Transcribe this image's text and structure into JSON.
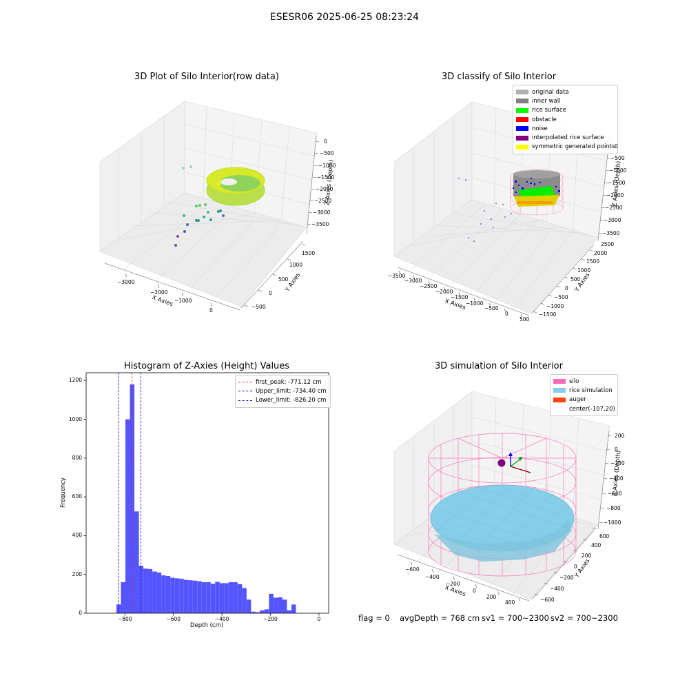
{
  "figure_title": "ESESR06 2025-06-25 08:23:24",
  "footer": {
    "flag": "flag = 0",
    "avg_depth": "avgDepth = 768 cm",
    "sv1": "sv1 = 700~2300",
    "sv2": "sv2 = 700~2300"
  },
  "colors": {
    "histogram": "#5555ff",
    "first_peak": "#d62728",
    "limits": "#0000cc",
    "silo": "#ff69b4",
    "rice_simulation": "#87ceeb",
    "auger": "#ff4500"
  },
  "chart_data": [
    {
      "type": "scatter",
      "title": "3D Plot of Silo Interior(row data)",
      "xlabel": "X Axies",
      "ylabel": "Y Axies",
      "zlabel": "Z Axies (Depth)",
      "x_ticks": [
        "−3000",
        "−2000",
        "−1000",
        "0"
      ],
      "y_ticks": [
        "−500",
        "0",
        "500",
        "1000",
        "1500"
      ],
      "z_ticks": [
        "0",
        "−500",
        "−1000",
        "−1500",
        "−2000",
        "−2500",
        "−3000",
        "−3500"
      ]
    },
    {
      "type": "scatter",
      "title": "3D classify of Silo Interior",
      "xlabel": "X Axies",
      "ylabel": "Y Axies",
      "zlabel": "Z Axies (Depth)",
      "x_ticks": [
        "−3500",
        "−3000",
        "−2500",
        "−2000",
        "−1500",
        "−1000",
        "−500",
        "0",
        "500"
      ],
      "y_ticks": [
        "−1500",
        "−1000",
        "−500",
        "0",
        "500",
        "1000",
        "1500",
        "2000",
        "2500"
      ],
      "z_ticks": [
        "0",
        "−500",
        "−1000",
        "−1500",
        "−2000",
        "−2500",
        "−3000",
        "−3500"
      ],
      "legend_position": "top-right",
      "legend": [
        {
          "label": "original data",
          "color": "#b0b0b0"
        },
        {
          "label": "inner wall",
          "color": "#808080"
        },
        {
          "label": "rice surface",
          "color": "#00ff00"
        },
        {
          "label": "obstacle",
          "color": "#ff0000"
        },
        {
          "label": "noise",
          "color": "#0000ff"
        },
        {
          "label": "interpolated rice surface",
          "color": "#800080"
        },
        {
          "label": "symmetric generated points",
          "color": "#ffff00"
        }
      ]
    },
    {
      "type": "bar",
      "title": "Histogram of Z-Axies (Height) Values",
      "xlabel": "Depth (cm)",
      "ylabel": "Frequency",
      "xlim": [
        -960,
        40
      ],
      "ylim": [
        0,
        1240
      ],
      "x_ticks": [
        -800,
        -600,
        -400,
        -200,
        0
      ],
      "y_ticks": [
        0,
        200,
        400,
        600,
        800,
        1000,
        1200
      ],
      "bin_width": 18.5,
      "bin_start": -835,
      "values": [
        45,
        160,
        1000,
        1180,
        525,
        245,
        230,
        228,
        215,
        210,
        195,
        192,
        183,
        180,
        178,
        172,
        170,
        168,
        165,
        160,
        160,
        152,
        162,
        155,
        155,
        160,
        160,
        150,
        130,
        70,
        8,
        5,
        15,
        20,
        100,
        80,
        82,
        70,
        15,
        45
      ],
      "legend_position": "top-right",
      "lines": [
        {
          "label": "first_peak: -771.12 cm",
          "x": -771.12,
          "color": "#d62728"
        },
        {
          "label": "Upper_limit: -734.40 cm",
          "x": -734.4,
          "color": "#0000cc"
        },
        {
          "label": "Lower_limit: -826.20 cm",
          "x": -826.2,
          "color": "#0000cc"
        }
      ]
    },
    {
      "type": "scatter",
      "title": "3D simulation of Silo Interior",
      "xlabel": "X Axies",
      "ylabel": "Y Axies",
      "zlabel": "Z Axies (Depth)",
      "x_ticks": [
        "−600",
        "−400",
        "−200",
        "0",
        "200",
        "400"
      ],
      "y_ticks": [
        "−600",
        "−400",
        "−200",
        "0",
        "200",
        "400",
        "600"
      ],
      "z_ticks": [
        "200",
        "0",
        "−200",
        "−400",
        "−600",
        "−800",
        "−1000"
      ],
      "legend_position": "top-right",
      "legend": [
        {
          "label": "silo",
          "color": "#ff69b4"
        },
        {
          "label": "rice simulation",
          "color": "#87ceeb"
        },
        {
          "label": "auger",
          "color": "#ff4500"
        },
        {
          "label": "center(-107,20)",
          "color": ""
        }
      ]
    }
  ]
}
